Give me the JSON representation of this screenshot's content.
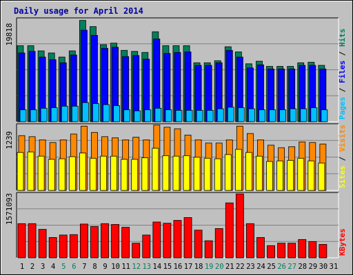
{
  "chart_data": [
    {
      "type": "bar",
      "title": "Daily usage for April 2014",
      "categories": [
        "1",
        "2",
        "3",
        "4",
        "5",
        "6",
        "7",
        "8",
        "9",
        "10",
        "11",
        "12",
        "13",
        "14",
        "15",
        "16",
        "17",
        "18",
        "19",
        "20",
        "21",
        "22",
        "23",
        "24",
        "25",
        "26",
        "27",
        "28",
        "29",
        "30",
        "31"
      ],
      "weekend_days": [
        "5",
        "6",
        "12",
        "13",
        "19",
        "20",
        "26",
        "27"
      ],
      "legend": [
        "Pages",
        "Files",
        "Hits"
      ],
      "legend_separator": " / ",
      "ymax_label": "19818",
      "ylim": [
        0,
        19818
      ],
      "series": [
        {
          "name": "Hits",
          "values": [
            14700,
            14700,
            13700,
            13300,
            12500,
            13700,
            19600,
            18400,
            14900,
            15200,
            13800,
            13600,
            13400,
            17400,
            14700,
            14700,
            14700,
            11400,
            11400,
            11800,
            14500,
            13500,
            11200,
            11700,
            10700,
            10700,
            10700,
            11400,
            11500,
            10900,
            0
          ]
        },
        {
          "name": "Files",
          "values": [
            13300,
            13600,
            12500,
            12000,
            11400,
            12900,
            17700,
            16700,
            14200,
            14400,
            12600,
            12800,
            12100,
            16000,
            13200,
            13400,
            13500,
            10900,
            10900,
            11400,
            13800,
            12500,
            10400,
            11000,
            10200,
            10200,
            10200,
            10900,
            10900,
            10200,
            0
          ]
        },
        {
          "name": "Pages",
          "values": [
            2300,
            2300,
            2600,
            2700,
            3000,
            3000,
            3700,
            3500,
            3300,
            3100,
            2300,
            2100,
            2300,
            2600,
            2300,
            2200,
            2200,
            2200,
            2200,
            2500,
            2800,
            2700,
            2500,
            2300,
            2300,
            2300,
            2500,
            2500,
            2700,
            2300,
            0
          ]
        }
      ],
      "colors": {
        "Hits": "#00805c",
        "Files": "#0000ff",
        "Pages": "#00c0ff"
      }
    },
    {
      "type": "bar",
      "categories": [
        "1",
        "2",
        "3",
        "4",
        "5",
        "6",
        "7",
        "8",
        "9",
        "10",
        "11",
        "12",
        "13",
        "14",
        "15",
        "16",
        "17",
        "18",
        "19",
        "20",
        "21",
        "22",
        "23",
        "24",
        "25",
        "26",
        "27",
        "28",
        "29",
        "30",
        "31"
      ],
      "legend": [
        "Sites",
        "Visits"
      ],
      "legend_separator": " / ",
      "ymax_label": "1239",
      "ylim": [
        0,
        1239
      ],
      "series": [
        {
          "name": "Visits",
          "values": [
            1040,
            1020,
            960,
            910,
            960,
            1070,
            1220,
            1100,
            1020,
            1000,
            960,
            1010,
            960,
            1240,
            1200,
            1170,
            1050,
            960,
            900,
            900,
            960,
            1220,
            1080,
            960,
            860,
            810,
            830,
            920,
            910,
            880,
            0
          ]
        },
        {
          "name": "Sites",
          "values": [
            720,
            730,
            650,
            590,
            600,
            640,
            710,
            610,
            650,
            650,
            590,
            590,
            620,
            800,
            660,
            650,
            660,
            630,
            610,
            600,
            680,
            780,
            720,
            650,
            550,
            560,
            570,
            610,
            560,
            520,
            0
          ]
        }
      ],
      "colors": {
        "Visits": "#ff8800",
        "Sites": "#ffff00"
      }
    },
    {
      "type": "bar",
      "categories": [
        "1",
        "2",
        "3",
        "4",
        "5",
        "6",
        "7",
        "8",
        "9",
        "10",
        "11",
        "12",
        "13",
        "14",
        "15",
        "16",
        "17",
        "18",
        "19",
        "20",
        "21",
        "22",
        "23",
        "24",
        "25",
        "26",
        "27",
        "28",
        "29",
        "30",
        "31"
      ],
      "legend": [
        "KBytes"
      ],
      "legend_separator": " / ",
      "ymax_label": "1571093",
      "ylim": [
        0,
        1571093
      ],
      "series": [
        {
          "name": "KBytes",
          "values": [
            840000,
            840000,
            700000,
            500000,
            560000,
            570000,
            830000,
            770000,
            840000,
            820000,
            750000,
            360000,
            560000,
            880000,
            850000,
            920000,
            990000,
            680000,
            420000,
            720000,
            1350000,
            1570000,
            840000,
            500000,
            300000,
            360000,
            360000,
            450000,
            400000,
            330000,
            0
          ]
        }
      ],
      "colors": {
        "KBytes": "#ff0000"
      }
    }
  ]
}
